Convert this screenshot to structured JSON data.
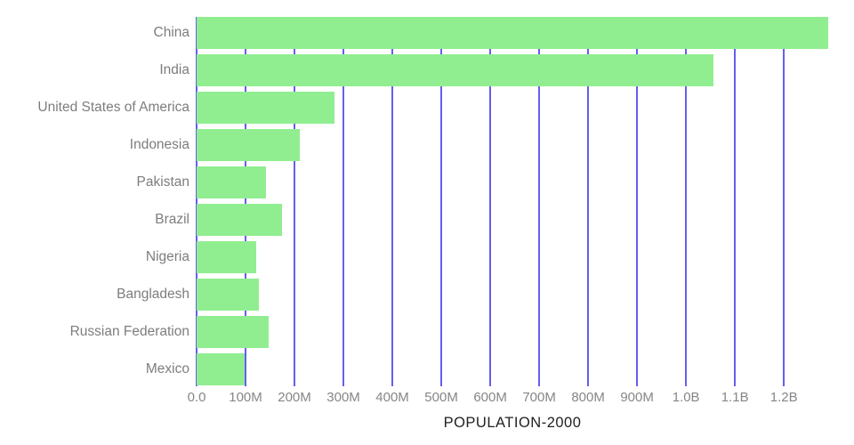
{
  "chart_data": {
    "type": "bar",
    "orientation": "horizontal",
    "title": "",
    "xlabel": "POPULATION-2000",
    "ylabel": "",
    "categories": [
      "China",
      "India",
      "United States of America",
      "Indonesia",
      "Pakistan",
      "Brazil",
      "Nigeria",
      "Bangladesh",
      "Russian Federation",
      "Mexico"
    ],
    "values_millions": [
      1290.6,
      1056.6,
      282.2,
      211.5,
      142.3,
      174.8,
      122.3,
      127.7,
      146.4,
      98.9
    ],
    "x_ticks": [
      {
        "label": "0.0",
        "value_millions": 0
      },
      {
        "label": "100M",
        "value_millions": 100
      },
      {
        "label": "200M",
        "value_millions": 200
      },
      {
        "label": "300M",
        "value_millions": 300
      },
      {
        "label": "400M",
        "value_millions": 400
      },
      {
        "label": "500M",
        "value_millions": 500
      },
      {
        "label": "600M",
        "value_millions": 600
      },
      {
        "label": "700M",
        "value_millions": 700
      },
      {
        "label": "800M",
        "value_millions": 800
      },
      {
        "label": "900M",
        "value_millions": 900
      },
      {
        "label": "1.0B",
        "value_millions": 1000
      },
      {
        "label": "1.1B",
        "value_millions": 1100
      },
      {
        "label": "1.2B",
        "value_millions": 1200
      }
    ],
    "xlim_millions": [
      0,
      1290.6
    ],
    "grid": true,
    "legend": false,
    "colors": {
      "bar": "#90ee90",
      "gridline": "#655ef0",
      "category_label": "#7d7d7d",
      "tick_label": "#868686",
      "axis_title": "#212121",
      "background": "#ffffff"
    }
  }
}
